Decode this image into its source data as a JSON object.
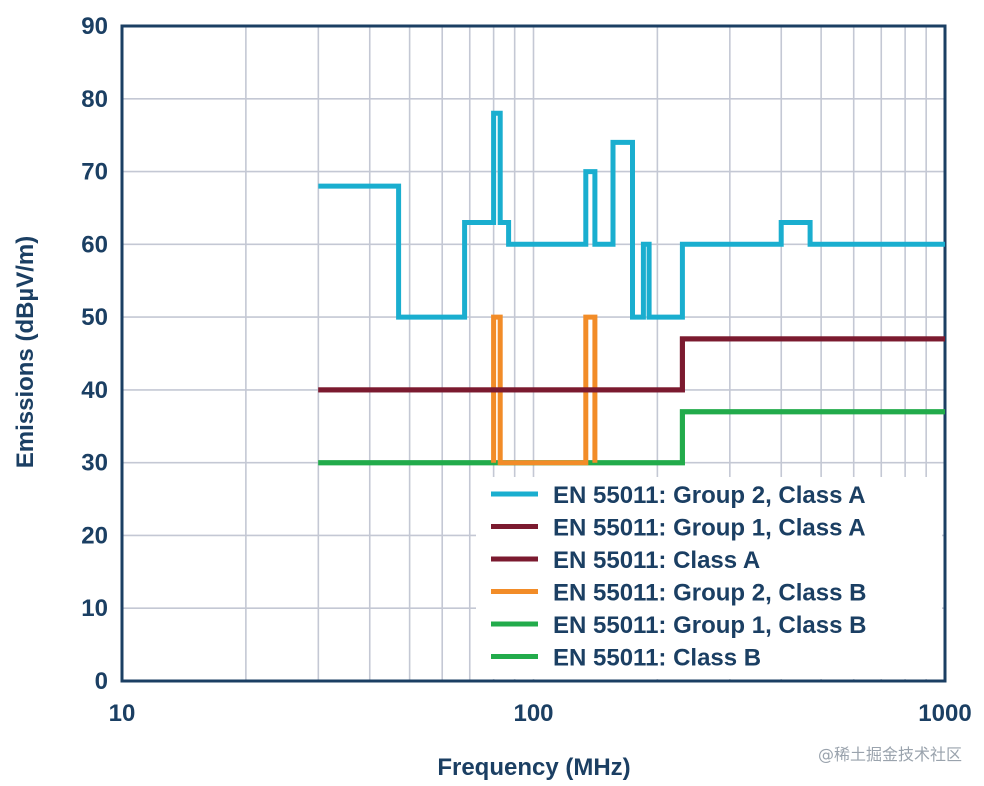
{
  "chart_data": {
    "type": "line",
    "title": "",
    "xlabel": "Frequency (MHz)",
    "ylabel": "Emissions (dBµV/m)",
    "xscale": "log",
    "xlim": [
      10,
      1000
    ],
    "ylim": [
      0,
      90
    ],
    "x_ticks": [
      10,
      100,
      1000
    ],
    "x_tick_labels": [
      "10",
      "100",
      "1000"
    ],
    "y_ticks": [
      0,
      10,
      20,
      30,
      40,
      50,
      60,
      70,
      80,
      90
    ],
    "y_tick_labels": [
      "0",
      "10",
      "20",
      "30",
      "40",
      "50",
      "60",
      "70",
      "80",
      "90"
    ],
    "grid": true,
    "legend_position": "bottom-right",
    "series": [
      {
        "name": "EN 55011: Group 2, Class A",
        "color": "#1aaecf",
        "step": true,
        "points": [
          [
            30,
            68
          ],
          [
            47,
            68
          ],
          [
            47,
            50
          ],
          [
            68,
            50
          ],
          [
            68,
            63
          ],
          [
            80,
            63
          ],
          [
            80,
            78
          ],
          [
            83,
            78
          ],
          [
            83,
            63
          ],
          [
            87,
            63
          ],
          [
            87,
            60
          ],
          [
            134,
            60
          ],
          [
            134,
            70
          ],
          [
            141,
            70
          ],
          [
            141,
            60
          ],
          [
            156,
            60
          ],
          [
            156,
            74
          ],
          [
            174,
            74
          ],
          [
            174,
            50
          ],
          [
            185,
            50
          ],
          [
            185,
            60
          ],
          [
            191,
            60
          ],
          [
            191,
            50
          ],
          [
            230,
            50
          ],
          [
            230,
            60
          ],
          [
            400,
            60
          ],
          [
            400,
            63
          ],
          [
            470,
            63
          ],
          [
            470,
            60
          ],
          [
            1000,
            60
          ]
        ]
      },
      {
        "name": "EN 55011: Group 1, Class A",
        "color": "#7b1a2f",
        "step": true,
        "points": [
          [
            30,
            40
          ],
          [
            230,
            40
          ],
          [
            230,
            47
          ],
          [
            1000,
            47
          ]
        ]
      },
      {
        "name": "EN 55011: Class A",
        "color": "#7b1a2f",
        "step": true,
        "points": [
          [
            30,
            40
          ],
          [
            230,
            40
          ],
          [
            230,
            47
          ],
          [
            1000,
            47
          ]
        ]
      },
      {
        "name": "EN 55011: Group 2, Class B",
        "color": "#f28c28",
        "step": true,
        "points": [
          [
            80,
            30
          ],
          [
            80,
            50
          ],
          [
            83,
            50
          ],
          [
            83,
            30
          ],
          [
            134,
            30
          ],
          [
            134,
            50
          ],
          [
            141,
            50
          ],
          [
            141,
            30
          ]
        ]
      },
      {
        "name": "EN 55011: Group 1, Class B",
        "color": "#22ab4b",
        "step": true,
        "points": [
          [
            30,
            30
          ],
          [
            230,
            30
          ],
          [
            230,
            37
          ],
          [
            1000,
            37
          ]
        ]
      },
      {
        "name": "EN 55011: Class B",
        "color": "#22ab4b",
        "step": true,
        "points": [
          [
            30,
            30
          ],
          [
            230,
            30
          ],
          [
            230,
            37
          ],
          [
            1000,
            37
          ]
        ]
      }
    ]
  },
  "watermark": "@稀土掘金技术社区"
}
